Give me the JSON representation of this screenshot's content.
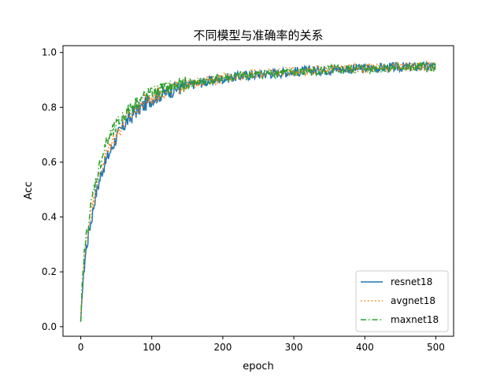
{
  "chart_data": {
    "type": "line",
    "title": "不同模型与准确率的关系",
    "xlabel": "epoch",
    "ylabel": "Acc",
    "xlim": [
      -25,
      525
    ],
    "ylim": [
      -0.035,
      1.025
    ],
    "xticks": [
      0,
      100,
      200,
      300,
      400,
      500
    ],
    "yticks": [
      0.0,
      0.2,
      0.4,
      0.6,
      0.8,
      1.0
    ],
    "xtick_labels": [
      "0",
      "100",
      "200",
      "300",
      "400",
      "500"
    ],
    "ytick_labels": [
      "0.0",
      "0.2",
      "0.4",
      "0.6",
      "0.8",
      "1.0"
    ],
    "grid": false,
    "legend_position": "lower-right",
    "series": [
      {
        "name": "resnet18",
        "color": "#1f77b4",
        "style": "solid",
        "x": [
          0,
          2,
          4,
          6,
          8,
          10,
          12,
          15,
          20,
          25,
          30,
          35,
          40,
          45,
          50,
          55,
          60,
          65,
          70,
          75,
          80,
          90,
          100,
          110,
          120,
          130,
          140,
          150,
          160,
          170,
          180,
          190,
          200,
          220,
          240,
          260,
          280,
          300,
          320,
          340,
          360,
          380,
          400,
          420,
          440,
          460,
          480,
          500
        ],
        "values": [
          0.01,
          0.12,
          0.19,
          0.25,
          0.29,
          0.32,
          0.36,
          0.39,
          0.47,
          0.52,
          0.57,
          0.6,
          0.63,
          0.66,
          0.69,
          0.71,
          0.73,
          0.75,
          0.76,
          0.78,
          0.79,
          0.81,
          0.83,
          0.845,
          0.855,
          0.865,
          0.872,
          0.878,
          0.885,
          0.89,
          0.895,
          0.9,
          0.905,
          0.912,
          0.918,
          0.922,
          0.926,
          0.93,
          0.933,
          0.936,
          0.938,
          0.94,
          0.942,
          0.944,
          0.946,
          0.947,
          0.948,
          0.95
        ]
      },
      {
        "name": "avgnet18",
        "color": "#ff7f0e",
        "style": "dotted",
        "x": [
          0,
          2,
          4,
          6,
          8,
          10,
          12,
          15,
          20,
          25,
          30,
          35,
          40,
          45,
          50,
          55,
          60,
          65,
          70,
          75,
          80,
          90,
          100,
          110,
          120,
          130,
          140,
          150,
          160,
          170,
          180,
          190,
          200,
          220,
          240,
          260,
          280,
          300,
          320,
          340,
          360,
          380,
          400,
          420,
          440,
          460,
          480,
          500
        ],
        "values": [
          0.02,
          0.14,
          0.21,
          0.27,
          0.31,
          0.35,
          0.38,
          0.42,
          0.49,
          0.54,
          0.58,
          0.62,
          0.65,
          0.68,
          0.7,
          0.72,
          0.74,
          0.76,
          0.77,
          0.785,
          0.8,
          0.82,
          0.835,
          0.85,
          0.86,
          0.868,
          0.875,
          0.882,
          0.888,
          0.893,
          0.898,
          0.902,
          0.907,
          0.914,
          0.92,
          0.924,
          0.928,
          0.932,
          0.935,
          0.938,
          0.94,
          0.942,
          0.944,
          0.946,
          0.947,
          0.948,
          0.949,
          0.95
        ]
      },
      {
        "name": "maxnet18",
        "color": "#2ca02c",
        "style": "dashdot",
        "x": [
          0,
          2,
          4,
          6,
          8,
          10,
          12,
          15,
          20,
          25,
          30,
          35,
          40,
          45,
          50,
          55,
          60,
          65,
          70,
          75,
          80,
          90,
          100,
          110,
          120,
          130,
          140,
          150,
          160,
          170,
          180,
          190,
          200,
          220,
          240,
          260,
          280,
          300,
          320,
          340,
          360,
          380,
          400,
          420,
          440,
          460,
          480,
          500
        ],
        "values": [
          0.01,
          0.15,
          0.23,
          0.29,
          0.33,
          0.37,
          0.4,
          0.45,
          0.52,
          0.57,
          0.62,
          0.66,
          0.69,
          0.71,
          0.73,
          0.75,
          0.77,
          0.78,
          0.8,
          0.81,
          0.82,
          0.84,
          0.85,
          0.86,
          0.87,
          0.875,
          0.88,
          0.886,
          0.891,
          0.895,
          0.899,
          0.903,
          0.907,
          0.913,
          0.918,
          0.922,
          0.926,
          0.929,
          0.932,
          0.935,
          0.937,
          0.939,
          0.941,
          0.943,
          0.944,
          0.945,
          0.946,
          0.947
        ]
      }
    ]
  }
}
